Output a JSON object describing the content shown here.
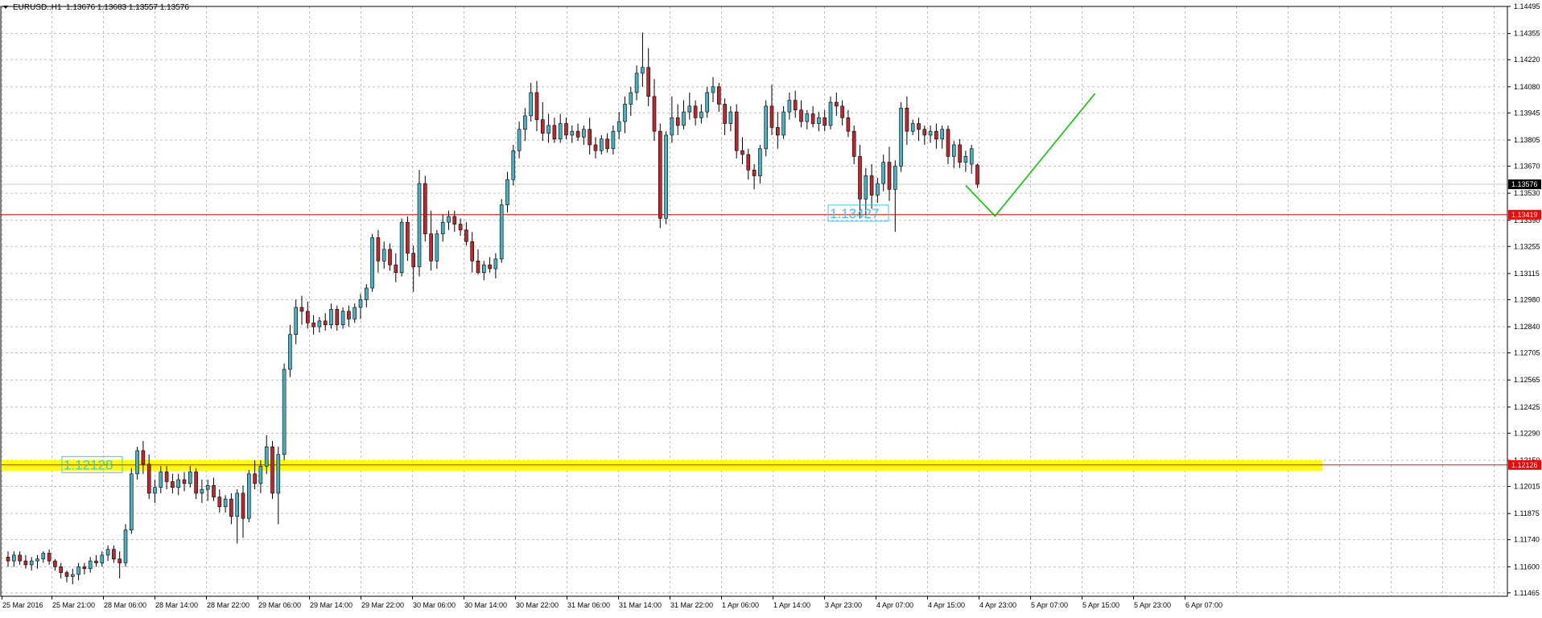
{
  "header": {
    "dropdown_icon": "triangle-down-icon",
    "symbol": "EURUSD..H1",
    "ohlc": "1.13676 1.13683 1.13557 1.13576"
  },
  "colors": {
    "bull_body": "#46b0c4",
    "bear_body": "#c0262c",
    "wick": "#000000",
    "grid": "#c0c0c0",
    "resistance_line": "#ff0000",
    "zone_fill": "#ffff00",
    "forecast_line": "#00cc00",
    "label_text": "#3cc8e0",
    "current_price_bg": "#000000",
    "level_bg": "#ff0000"
  },
  "chart_data": {
    "type": "candlestick",
    "title": "EURUSD..H1",
    "ylim": [
      1.1146,
      1.14495
    ],
    "y_ticks": [
      "1.14495",
      "1.14355",
      "1.14220",
      "1.14080",
      "1.13945",
      "1.13805",
      "1.13670",
      "1.13530",
      "1.13390",
      "1.13255",
      "1.13115",
      "1.12980",
      "1.12840",
      "1.12705",
      "1.12565",
      "1.12425",
      "1.12290",
      "1.12150",
      "1.12015",
      "1.11875",
      "1.11740",
      "1.11600",
      "1.11465"
    ],
    "x_labels": [
      "25 Mar 2016",
      "25 Mar 21:00",
      "28 Mar 06:00",
      "28 Mar 14:00",
      "28 Mar 22:00",
      "29 Mar 06:00",
      "29 Mar 14:00",
      "29 Mar 22:00",
      "30 Mar 06:00",
      "30 Mar 14:00",
      "30 Mar 22:00",
      "31 Mar 06:00",
      "31 Mar 14:00",
      "31 Mar 22:00",
      "1 Apr 06:00",
      "1 Apr 14:00",
      "3 Apr 23:00",
      "4 Apr 07:00",
      "4 Apr 15:00",
      "4 Apr 23:00",
      "5 Apr 07:00",
      "5 Apr 15:00",
      "5 Apr 23:00",
      "6 Apr 07:00"
    ],
    "candles": [
      [
        1.1165,
        1.1168,
        1.116,
        1.1163
      ],
      [
        1.1163,
        1.1168,
        1.116,
        1.1166
      ],
      [
        1.1166,
        1.1168,
        1.1161,
        1.1163
      ],
      [
        1.1163,
        1.1166,
        1.1159,
        1.1161
      ],
      [
        1.1161,
        1.1165,
        1.1158,
        1.1163
      ],
      [
        1.1163,
        1.1166,
        1.1159,
        1.1164
      ],
      [
        1.1164,
        1.1168,
        1.1162,
        1.1167
      ],
      [
        1.1167,
        1.1169,
        1.1161,
        1.1163
      ],
      [
        1.1163,
        1.1164,
        1.1158,
        1.116
      ],
      [
        1.116,
        1.1162,
        1.1154,
        1.1157
      ],
      [
        1.1157,
        1.1158,
        1.1152,
        1.1155
      ],
      [
        1.1155,
        1.1159,
        1.1151,
        1.1156
      ],
      [
        1.1156,
        1.1162,
        1.1153,
        1.116
      ],
      [
        1.116,
        1.1162,
        1.1156,
        1.1159
      ],
      [
        1.1159,
        1.1165,
        1.1157,
        1.1163
      ],
      [
        1.1163,
        1.1166,
        1.116,
        1.1162
      ],
      [
        1.1162,
        1.1168,
        1.116,
        1.1166
      ],
      [
        1.1166,
        1.1171,
        1.1163,
        1.1169
      ],
      [
        1.1169,
        1.1171,
        1.1162,
        1.1164
      ],
      [
        1.1164,
        1.1168,
        1.1154,
        1.1162
      ],
      [
        1.1162,
        1.1182,
        1.116,
        1.1179
      ],
      [
        1.1179,
        1.1211,
        1.1177,
        1.1208
      ],
      [
        1.1208,
        1.1222,
        1.1205,
        1.122
      ],
      [
        1.122,
        1.1225,
        1.1208,
        1.1213
      ],
      [
        1.1213,
        1.1218,
        1.1195,
        1.1198
      ],
      [
        1.1198,
        1.1205,
        1.1193,
        1.1201
      ],
      [
        1.1201,
        1.1212,
        1.1198,
        1.1209
      ],
      [
        1.1209,
        1.1212,
        1.12,
        1.1204
      ],
      [
        1.1204,
        1.1208,
        1.1198,
        1.1201
      ],
      [
        1.1201,
        1.1208,
        1.1197,
        1.1205
      ],
      [
        1.1205,
        1.1209,
        1.1199,
        1.1203
      ],
      [
        1.1203,
        1.1212,
        1.1201,
        1.1209
      ],
      [
        1.1209,
        1.1211,
        1.1195,
        1.1198
      ],
      [
        1.1198,
        1.1205,
        1.1193,
        1.12
      ],
      [
        1.12,
        1.1205,
        1.1194,
        1.1202
      ],
      [
        1.1202,
        1.1206,
        1.1194,
        1.1196
      ],
      [
        1.1196,
        1.12,
        1.1188,
        1.1191
      ],
      [
        1.1191,
        1.1197,
        1.1188,
        1.1195
      ],
      [
        1.1195,
        1.1198,
        1.1182,
        1.1186
      ],
      [
        1.1186,
        1.12,
        1.1172,
        1.1198
      ],
      [
        1.1198,
        1.1202,
        1.1175,
        1.1185
      ],
      [
        1.1185,
        1.121,
        1.1183,
        1.1208
      ],
      [
        1.1208,
        1.1215,
        1.12,
        1.1203
      ],
      [
        1.1203,
        1.1215,
        1.1198,
        1.1212
      ],
      [
        1.1212,
        1.1228,
        1.1208,
        1.1222
      ],
      [
        1.1222,
        1.1225,
        1.1195,
        1.1198
      ],
      [
        1.1198,
        1.1222,
        1.1182,
        1.1218
      ],
      [
        1.1218,
        1.1265,
        1.1215,
        1.1262
      ],
      [
        1.1262,
        1.1285,
        1.1258,
        1.128
      ],
      [
        1.128,
        1.1298,
        1.1275,
        1.1294
      ],
      [
        1.1294,
        1.13,
        1.1285,
        1.1292
      ],
      [
        1.1292,
        1.1297,
        1.1283,
        1.1286
      ],
      [
        1.1286,
        1.129,
        1.128,
        1.1284
      ],
      [
        1.1284,
        1.1289,
        1.1281,
        1.1287
      ],
      [
        1.1287,
        1.1291,
        1.1282,
        1.1285
      ],
      [
        1.1285,
        1.1296,
        1.1283,
        1.1293
      ],
      [
        1.1293,
        1.1295,
        1.1282,
        1.1285
      ],
      [
        1.1285,
        1.1294,
        1.1283,
        1.1292
      ],
      [
        1.1292,
        1.1295,
        1.1284,
        1.1288
      ],
      [
        1.1288,
        1.1296,
        1.1286,
        1.1294
      ],
      [
        1.1294,
        1.1301,
        1.1288,
        1.1298
      ],
      [
        1.1298,
        1.1306,
        1.1294,
        1.1304
      ],
      [
        1.1304,
        1.1332,
        1.1302,
        1.133
      ],
      [
        1.133,
        1.1334,
        1.1312,
        1.1318
      ],
      [
        1.1318,
        1.1328,
        1.1314,
        1.1324
      ],
      [
        1.1324,
        1.1327,
        1.1313,
        1.1316
      ],
      [
        1.1316,
        1.1322,
        1.1307,
        1.1312
      ],
      [
        1.1312,
        1.134,
        1.131,
        1.1338
      ],
      [
        1.1338,
        1.1341,
        1.1318,
        1.1322
      ],
      [
        1.1322,
        1.1326,
        1.1302,
        1.1315
      ],
      [
        1.1315,
        1.1365,
        1.131,
        1.1358
      ],
      [
        1.1358,
        1.1362,
        1.1328,
        1.1332
      ],
      [
        1.1332,
        1.1344,
        1.1313,
        1.1318
      ],
      [
        1.1318,
        1.1334,
        1.1314,
        1.1332
      ],
      [
        1.1332,
        1.1342,
        1.1328,
        1.1338
      ],
      [
        1.1338,
        1.1344,
        1.1334,
        1.1341
      ],
      [
        1.1341,
        1.1344,
        1.1333,
        1.1337
      ],
      [
        1.1337,
        1.134,
        1.1331,
        1.1334
      ],
      [
        1.1334,
        1.1338,
        1.1326,
        1.1328
      ],
      [
        1.1328,
        1.1333,
        1.1312,
        1.1318
      ],
      [
        1.1318,
        1.1324,
        1.1311,
        1.1312
      ],
      [
        1.1312,
        1.1318,
        1.1308,
        1.1316
      ],
      [
        1.1316,
        1.132,
        1.1312,
        1.1314
      ],
      [
        1.1314,
        1.1322,
        1.1309,
        1.1319
      ],
      [
        1.1319,
        1.135,
        1.1317,
        1.1347
      ],
      [
        1.1347,
        1.1364,
        1.1343,
        1.136
      ],
      [
        1.136,
        1.1378,
        1.1357,
        1.1375
      ],
      [
        1.1375,
        1.139,
        1.1371,
        1.1386
      ],
      [
        1.1386,
        1.1397,
        1.138,
        1.1393
      ],
      [
        1.1393,
        1.141,
        1.139,
        1.1405
      ],
      [
        1.1405,
        1.1411,
        1.1385,
        1.1391
      ],
      [
        1.1391,
        1.14,
        1.138,
        1.1384
      ],
      [
        1.1384,
        1.1394,
        1.1379,
        1.1388
      ],
      [
        1.1388,
        1.1392,
        1.1379,
        1.1381
      ],
      [
        1.1381,
        1.1394,
        1.1379,
        1.1389
      ],
      [
        1.1389,
        1.1392,
        1.1381,
        1.1383
      ],
      [
        1.1383,
        1.1388,
        1.1379,
        1.1385
      ],
      [
        1.1385,
        1.1389,
        1.138,
        1.1382
      ],
      [
        1.1382,
        1.1388,
        1.1378,
        1.1386
      ],
      [
        1.1386,
        1.1392,
        1.1373,
        1.1378
      ],
      [
        1.1378,
        1.1382,
        1.1371,
        1.1375
      ],
      [
        1.1375,
        1.1383,
        1.1373,
        1.1381
      ],
      [
        1.1381,
        1.1384,
        1.1374,
        1.1376
      ],
      [
        1.1376,
        1.1388,
        1.1373,
        1.1385
      ],
      [
        1.1385,
        1.1395,
        1.1381,
        1.139
      ],
      [
        1.139,
        1.1403,
        1.1384,
        1.1399
      ],
      [
        1.1399,
        1.1408,
        1.1393,
        1.1405
      ],
      [
        1.1405,
        1.1419,
        1.1401,
        1.1415
      ],
      [
        1.1415,
        1.1436,
        1.1408,
        1.1418
      ],
      [
        1.1418,
        1.1428,
        1.1398,
        1.1403
      ],
      [
        1.1403,
        1.1412,
        1.138,
        1.1385
      ],
      [
        1.1385,
        1.1389,
        1.1335,
        1.134
      ],
      [
        1.134,
        1.1385,
        1.1337,
        1.1383
      ],
      [
        1.1383,
        1.1403,
        1.1379,
        1.1392
      ],
      [
        1.1392,
        1.1399,
        1.1383,
        1.1388
      ],
      [
        1.1388,
        1.1401,
        1.1386,
        1.1395
      ],
      [
        1.1395,
        1.1405,
        1.1391,
        1.1398
      ],
      [
        1.1398,
        1.1401,
        1.1388,
        1.1392
      ],
      [
        1.1392,
        1.1399,
        1.1389,
        1.1395
      ],
      [
        1.1395,
        1.1408,
        1.1392,
        1.1405
      ],
      [
        1.1405,
        1.1413,
        1.14,
        1.1408
      ],
      [
        1.1408,
        1.141,
        1.1395,
        1.1399
      ],
      [
        1.1399,
        1.1402,
        1.1383,
        1.1389
      ],
      [
        1.1389,
        1.1398,
        1.1385,
        1.1395
      ],
      [
        1.1395,
        1.1399,
        1.1371,
        1.1375
      ],
      [
        1.1375,
        1.1382,
        1.1368,
        1.1373
      ],
      [
        1.1373,
        1.1376,
        1.136,
        1.1365
      ],
      [
        1.1365,
        1.1368,
        1.1355,
        1.1362
      ],
      [
        1.1362,
        1.1378,
        1.1358,
        1.1376
      ],
      [
        1.1376,
        1.1401,
        1.1372,
        1.1398
      ],
      [
        1.1398,
        1.1409,
        1.1383,
        1.1387
      ],
      [
        1.1387,
        1.1395,
        1.1376,
        1.1383
      ],
      [
        1.1383,
        1.1398,
        1.1381,
        1.1395
      ],
      [
        1.1395,
        1.1405,
        1.1391,
        1.1401
      ],
      [
        1.1401,
        1.1406,
        1.1392,
        1.1396
      ],
      [
        1.1396,
        1.1401,
        1.1387,
        1.139
      ],
      [
        1.139,
        1.1396,
        1.1386,
        1.1394
      ],
      [
        1.1394,
        1.1398,
        1.1387,
        1.1389
      ],
      [
        1.1389,
        1.1395,
        1.1385,
        1.1392
      ],
      [
        1.1392,
        1.1396,
        1.1385,
        1.1388
      ],
      [
        1.1388,
        1.1403,
        1.1386,
        1.14
      ],
      [
        1.14,
        1.1405,
        1.1393,
        1.1398
      ],
      [
        1.1398,
        1.1401,
        1.1388,
        1.1392
      ],
      [
        1.1392,
        1.1396,
        1.1382,
        1.1385
      ],
      [
        1.1385,
        1.1388,
        1.1368,
        1.1372
      ],
      [
        1.1372,
        1.1378,
        1.134,
        1.135
      ],
      [
        1.135,
        1.1366,
        1.1342,
        1.1362
      ],
      [
        1.1362,
        1.1368,
        1.1345,
        1.1352
      ],
      [
        1.1352,
        1.1361,
        1.1348,
        1.1358
      ],
      [
        1.1358,
        1.1373,
        1.1354,
        1.1369
      ],
      [
        1.1369,
        1.1377,
        1.1349,
        1.1355
      ],
      [
        1.1355,
        1.137,
        1.1333,
        1.1367
      ],
      [
        1.1367,
        1.14,
        1.1364,
        1.1397
      ],
      [
        1.1397,
        1.1403,
        1.1378,
        1.1385
      ],
      [
        1.1385,
        1.1391,
        1.1383,
        1.1389
      ],
      [
        1.1389,
        1.1392,
        1.138,
        1.1386
      ],
      [
        1.1386,
        1.1388,
        1.1378,
        1.1383
      ],
      [
        1.1383,
        1.1388,
        1.1379,
        1.1385
      ],
      [
        1.1385,
        1.1389,
        1.1376,
        1.1381
      ],
      [
        1.1381,
        1.1388,
        1.1376,
        1.1386
      ],
      [
        1.1386,
        1.1388,
        1.1368,
        1.1372
      ],
      [
        1.1372,
        1.138,
        1.1366,
        1.1378
      ],
      [
        1.1378,
        1.1381,
        1.1366,
        1.1369
      ],
      [
        1.1369,
        1.1375,
        1.1364,
        1.1372
      ],
      [
        1.1368,
        1.1378,
        1.1363,
        1.1376
      ],
      [
        1.13676,
        1.13683,
        1.13557,
        1.13576
      ]
    ],
    "current_price": "1.13576",
    "resistance_level": "1.13419",
    "support_zone_level": "1.12126",
    "annotations": [
      {
        "text": "1.13427",
        "price": 1.13427
      },
      {
        "text": "1.12128",
        "price": 1.12128
      }
    ],
    "forecast_path": [
      {
        "candle": 163,
        "price": 1.1357
      },
      {
        "candle": 168,
        "price": 1.13412
      },
      {
        "candle": 185,
        "price": 1.14045
      }
    ],
    "grid": true,
    "legend": "none"
  }
}
